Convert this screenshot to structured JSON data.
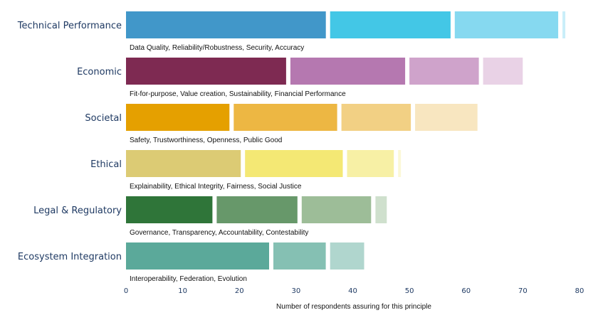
{
  "chart_data": {
    "type": "bar",
    "orientation": "horizontal",
    "stacked": true,
    "xlabel": "Number of respondents assuring for this principle",
    "xlim": [
      0,
      80
    ],
    "xticks": [
      0,
      10,
      20,
      30,
      40,
      50,
      60,
      70,
      80
    ],
    "grid": false,
    "categories": [
      {
        "name": "Technical Performance",
        "principles": "Data Quality, Reliability/Robustness, Security, Accuracy",
        "segments": [
          36,
          22,
          19,
          0.5
        ],
        "colors": [
          "#4197c9",
          "#43c7e6",
          "#86d9f0",
          "#c9eef9"
        ]
      },
      {
        "name": "Economic",
        "principles": "Fit-for-purpose, Value creation, Sustainability, Financial Performance",
        "segments": [
          29,
          21,
          13,
          7
        ],
        "colors": [
          "#7e2a52",
          "#b578b0",
          "#cfa3cb",
          "#e9d2e6"
        ]
      },
      {
        "name": "Societal",
        "principles": "Safety, Trustworthiness, Openness, Public Good",
        "segments": [
          19,
          19,
          13,
          11
        ],
        "colors": [
          "#e5a000",
          "#edb743",
          "#f2d084",
          "#f8e6c0"
        ]
      },
      {
        "name": "Ethical",
        "principles": "Explainability, Ethical Integrity, Fairness, Social Justice",
        "segments": [
          21,
          18,
          9,
          0.5
        ],
        "colors": [
          "#dccb74",
          "#f4e874",
          "#f7f0a5",
          "#fbf8d6"
        ]
      },
      {
        "name": "Legal & Regulatory",
        "principles": "Governance, Transparency, Accountability, Contestability",
        "segments": [
          16,
          15,
          13,
          2
        ],
        "colors": [
          "#2f7539",
          "#67986a",
          "#9dbd98",
          "#cfe0cd"
        ]
      },
      {
        "name": "Ecosystem Integration",
        "principles": "Interoperability, Federation, Evolution",
        "segments": [
          26,
          10,
          6
        ],
        "colors": [
          "#5ba99a",
          "#85c0b3",
          "#b0d6ce"
        ]
      }
    ]
  }
}
